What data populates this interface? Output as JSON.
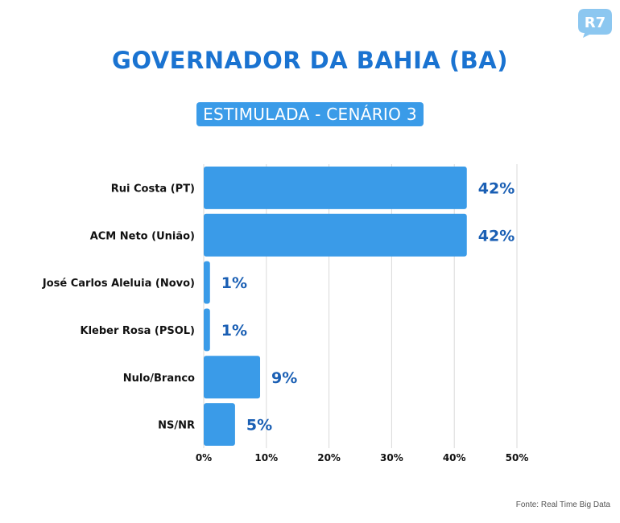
{
  "title": "GOVERNADOR DA BAHIA (BA)",
  "subtitle": "ESTIMULADA - CENÁRIO 3",
  "logo_text": "R7",
  "source": "Fonte: Real Time Big Data",
  "colors": {
    "title": "#1a73d1",
    "bar": "#3a9be8",
    "value_label": "#1a5fb4",
    "grid": "#d9d9d9",
    "subtitle_bg": "#3a9be8",
    "logo": "#8cc7f0"
  },
  "chart_data": {
    "type": "bar",
    "orientation": "horizontal",
    "categories": [
      "Rui Costa (PT)",
      "ACM Neto (União)",
      "José Carlos Aleluia (Novo)",
      "Kleber Rosa (PSOL)",
      "Nulo/Branco",
      "NS/NR"
    ],
    "values": [
      42,
      42,
      1,
      1,
      9,
      5
    ],
    "value_labels": [
      "42%",
      "42%",
      "1%",
      "1%",
      "9%",
      "5%"
    ],
    "xlim": [
      0,
      50
    ],
    "xticks": [
      0,
      10,
      20,
      30,
      40,
      50
    ],
    "xtick_labels": [
      "0%",
      "10%",
      "20%",
      "30%",
      "40%",
      "50%"
    ],
    "grid": true,
    "legend": false
  }
}
